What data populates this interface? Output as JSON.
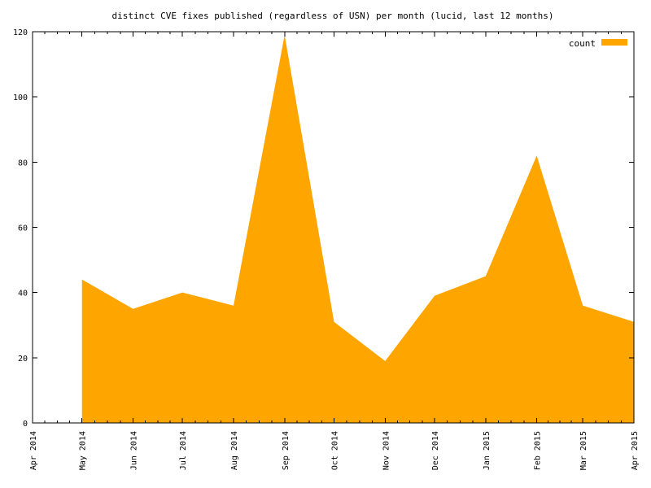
{
  "chart_data": {
    "type": "area",
    "title": "distinct CVE fixes published (regardless of USN) per month (lucid, last 12 months)",
    "xlabel": "",
    "ylabel": "",
    "x_ticks": [
      "Apr 2014",
      "May 2014",
      "Jun 2014",
      "Jul 2014",
      "Aug 2014",
      "Sep 2014",
      "Oct 2014",
      "Nov 2014",
      "Dec 2014",
      "Jan 2015",
      "Feb 2015",
      "Mar 2015",
      "Apr 2015"
    ],
    "xlim": [
      "2014-04-01",
      "2015-04-01"
    ],
    "ylim": [
      0,
      120
    ],
    "y_ticks": [
      0,
      20,
      40,
      60,
      80,
      100,
      120
    ],
    "grid": false,
    "legend_position": "top-right",
    "colors": {
      "area": "#ffa500",
      "axes": "#000000"
    },
    "series": [
      {
        "name": "count",
        "color": "#ffa500",
        "points": [
          {
            "x": "2014-05-01",
            "y": 44
          },
          {
            "x": "2014-06-01",
            "y": 35
          },
          {
            "x": "2014-07-01",
            "y": 40
          },
          {
            "x": "2014-08-01",
            "y": 36
          },
          {
            "x": "2014-09-01",
            "y": 119
          },
          {
            "x": "2014-10-01",
            "y": 31
          },
          {
            "x": "2014-11-01",
            "y": 19
          },
          {
            "x": "2014-12-01",
            "y": 39
          },
          {
            "x": "2015-01-01",
            "y": 45
          },
          {
            "x": "2015-02-01",
            "y": 82
          },
          {
            "x": "2015-03-01",
            "y": 36
          },
          {
            "x": "2015-04-01",
            "y": 31
          }
        ]
      }
    ]
  }
}
